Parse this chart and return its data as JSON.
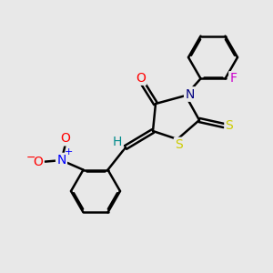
{
  "background_color": "#e8e8e8",
  "bond_color": "#000000",
  "bond_width": 1.8,
  "atom_colors": {
    "O": "#ff0000",
    "N_blue": "#0000ff",
    "N_ring": "#000080",
    "S": "#cccc00",
    "F": "#cc00cc",
    "H": "#008b8b",
    "C": "#000000"
  },
  "font_size_atom": 10,
  "font_size_charge": 8,
  "figsize": [
    3.0,
    3.0
  ],
  "dpi": 100,
  "xlim": [
    0,
    10
  ],
  "ylim": [
    0,
    10
  ]
}
